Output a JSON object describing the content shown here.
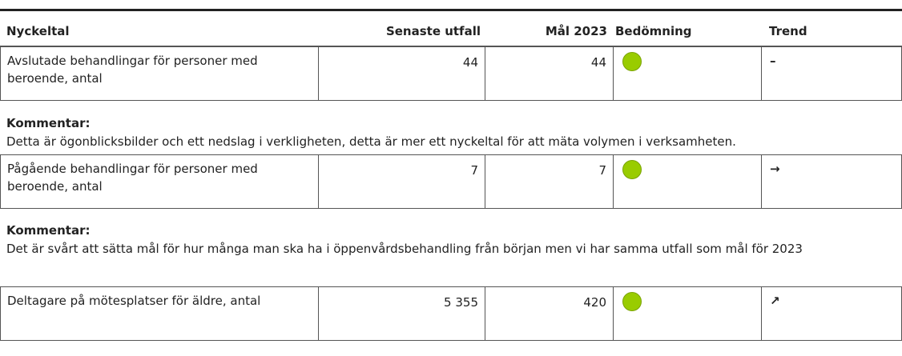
{
  "header": {
    "columns": [
      "Nyckeltal",
      "Senaste utfall",
      "Mål 2023",
      "Bedömning",
      "Trend"
    ]
  },
  "items": [
    {
      "name": "Avslutade behandlingar för personer med beroende, antal",
      "latest": "44",
      "goal": "44",
      "trend": "–",
      "comment_label": "Kommentar:",
      "comment": "Detta är ögonblicksbilder och ett nedslag i verkligheten, detta är mer ett nyckeltal för att mäta volymen i verksamheten."
    },
    {
      "name": "Pågående behandlingar för personer med beroende, antal",
      "latest": "7",
      "goal": "7",
      "trend": "→",
      "comment_label": "Kommentar:",
      "comment": "Det är svårt att sätta mål för hur många man ska ha i öppenvårdsbehandling från början men vi har samma utfall som mål för 2023"
    },
    {
      "name": "Deltagare på mötesplatser för äldre, antal",
      "latest": "5 355",
      "goal": "420",
      "trend": "↗"
    }
  ]
}
